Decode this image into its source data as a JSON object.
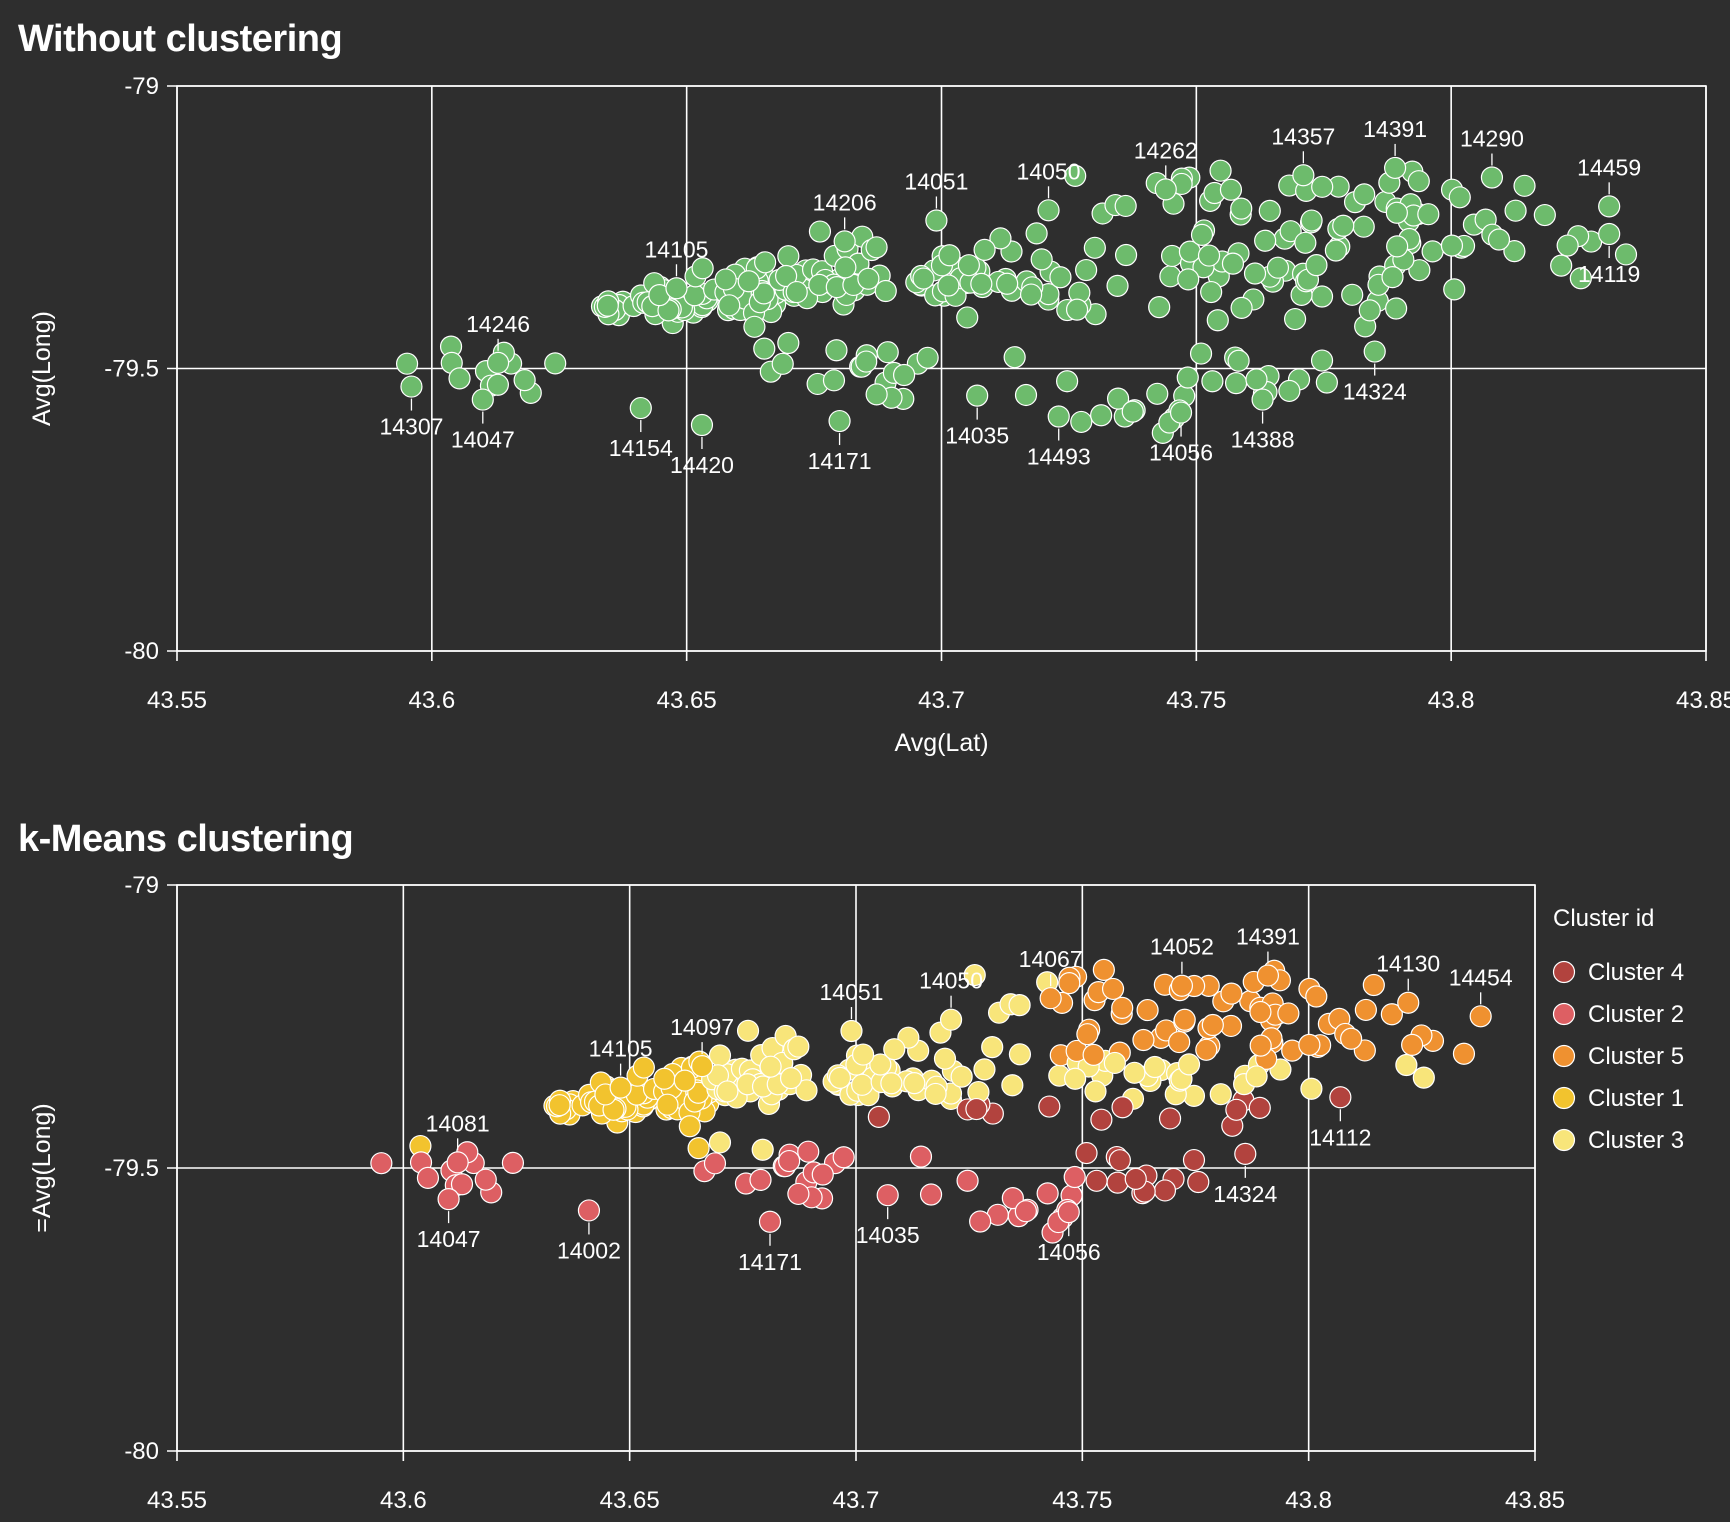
{
  "chart_data": [
    {
      "type": "scatter",
      "title": "Without clustering",
      "xlabel": "Avg(Lat)",
      "ylabel": "Avg(Long)",
      "xlim": [
        43.55,
        43.85
      ],
      "ylim": [
        -80,
        -79
      ],
      "xticks": [
        "43.55",
        "43.6",
        "43.65",
        "43.7",
        "43.75",
        "43.8",
        "43.85"
      ],
      "yticks": [
        "-79",
        "-79.5",
        "-80"
      ],
      "grid": true,
      "point_color": "#6dbb6c",
      "labeled_points": [
        {
          "label": "14307",
          "x": 43.596,
          "y": -79.532,
          "pos": "below"
        },
        {
          "label": "14047",
          "x": 43.61,
          "y": -79.555,
          "pos": "below"
        },
        {
          "label": "14246",
          "x": 43.613,
          "y": -79.49,
          "pos": "above"
        },
        {
          "label": "14154",
          "x": 43.641,
          "y": -79.57,
          "pos": "below"
        },
        {
          "label": "14420",
          "x": 43.653,
          "y": -79.6,
          "pos": "below"
        },
        {
          "label": "14105",
          "x": 43.648,
          "y": -79.358,
          "pos": "above"
        },
        {
          "label": "14206",
          "x": 43.681,
          "y": -79.275,
          "pos": "above"
        },
        {
          "label": "14171",
          "x": 43.68,
          "y": -79.593,
          "pos": "below"
        },
        {
          "label": "14051",
          "x": 43.699,
          "y": -79.238,
          "pos": "above"
        },
        {
          "label": "14035",
          "x": 43.707,
          "y": -79.548,
          "pos": "below"
        },
        {
          "label": "14050",
          "x": 43.721,
          "y": -79.22,
          "pos": "above"
        },
        {
          "label": "14493",
          "x": 43.723,
          "y": -79.585,
          "pos": "below"
        },
        {
          "label": "14262",
          "x": 43.744,
          "y": -79.183,
          "pos": "above"
        },
        {
          "label": "14056",
          "x": 43.747,
          "y": -79.578,
          "pos": "below"
        },
        {
          "label": "14388",
          "x": 43.763,
          "y": -79.555,
          "pos": "below"
        },
        {
          "label": "14357",
          "x": 43.771,
          "y": -79.158,
          "pos": "above"
        },
        {
          "label": "14391",
          "x": 43.789,
          "y": -79.145,
          "pos": "above"
        },
        {
          "label": "14324",
          "x": 43.785,
          "y": -79.47,
          "pos": "below"
        },
        {
          "label": "14290",
          "x": 43.808,
          "y": -79.162,
          "pos": "above"
        },
        {
          "label": "14459",
          "x": 43.831,
          "y": -79.213,
          "pos": "above"
        },
        {
          "label": "14119",
          "x": 43.831,
          "y": -79.262,
          "pos": "below"
        }
      ]
    },
    {
      "type": "scatter",
      "title": "k-Means clustering",
      "xlabel": "",
      "ylabel": "=Avg(Long)",
      "xlim": [
        43.55,
        43.85
      ],
      "ylim": [
        -80,
        -79
      ],
      "xticks": [
        "43.55",
        "43.6",
        "43.65",
        "43.7",
        "43.75",
        "43.8",
        "43.85"
      ],
      "yticks": [
        "-79",
        "-79.5",
        "-80"
      ],
      "grid": true,
      "legend": {
        "title": "Cluster id",
        "position": "right",
        "entries": [
          {
            "name": "Cluster 4",
            "color": "#b2433e"
          },
          {
            "name": "Cluster 2",
            "color": "#dd5f63"
          },
          {
            "name": "Cluster 5",
            "color": "#ef9130"
          },
          {
            "name": "Cluster 1",
            "color": "#f2c32e"
          },
          {
            "name": "Cluster 3",
            "color": "#f8e57a"
          }
        ]
      },
      "series": [
        {
          "name": "Cluster 4",
          "color": "#b2433e",
          "region": {
            "x": [
              43.685,
              43.812
            ],
            "y": [
              -79.52,
              -79.38
            ]
          },
          "labeled_points": [
            {
              "label": "14324",
              "x": 43.786,
              "y": -79.475,
              "pos": "below"
            },
            {
              "label": "14112",
              "x": 43.807,
              "y": -79.375,
              "pos": "below"
            }
          ]
        },
        {
          "name": "Cluster 2",
          "color": "#dd5f63",
          "region": {
            "x": [
              43.596,
              43.75
            ],
            "y": [
              -79.61,
              -79.47
            ]
          },
          "labeled_points": [
            {
              "label": "14047",
              "x": 43.61,
              "y": -79.555,
              "pos": "below"
            },
            {
              "label": "14081",
              "x": 43.612,
              "y": -79.49,
              "pos": "above"
            },
            {
              "label": "14002",
              "x": 43.641,
              "y": -79.575,
              "pos": "below"
            },
            {
              "label": "14171",
              "x": 43.681,
              "y": -79.595,
              "pos": "below"
            },
            {
              "label": "14035",
              "x": 43.707,
              "y": -79.548,
              "pos": "below"
            },
            {
              "label": "14056",
              "x": 43.747,
              "y": -79.578,
              "pos": "below"
            }
          ]
        },
        {
          "name": "Cluster 5",
          "color": "#ef9130",
          "region": {
            "x": [
              43.74,
              43.84
            ],
            "y": [
              -79.31,
              -79.14
            ]
          },
          "labeled_points": [
            {
              "label": "14067",
              "x": 43.743,
              "y": -79.2,
              "pos": "above"
            },
            {
              "label": "14052",
              "x": 43.772,
              "y": -79.178,
              "pos": "above"
            },
            {
              "label": "14391",
              "x": 43.791,
              "y": -79.16,
              "pos": "above"
            },
            {
              "label": "14130",
              "x": 43.822,
              "y": -79.208,
              "pos": "above"
            },
            {
              "label": "14454",
              "x": 43.838,
              "y": -79.232,
              "pos": "above"
            }
          ]
        },
        {
          "name": "Cluster 1",
          "color": "#f2c32e",
          "region": {
            "x": [
              43.63,
              43.69
            ],
            "y": [
              -79.48,
              -79.34
            ]
          },
          "labeled_points": [
            {
              "label": "14105",
              "x": 43.648,
              "y": -79.358,
              "pos": "above"
            },
            {
              "label": "14097",
              "x": 43.666,
              "y": -79.32,
              "pos": "above"
            }
          ]
        },
        {
          "name": "Cluster 3",
          "color": "#f8e57a",
          "region": {
            "x": [
              43.665,
              43.792
            ],
            "y": [
              -79.38,
              -79.24
            ]
          },
          "labeled_points": [
            {
              "label": "14051",
              "x": 43.699,
              "y": -79.258,
              "pos": "above"
            },
            {
              "label": "14050",
              "x": 43.721,
              "y": -79.238,
              "pos": "above"
            }
          ]
        }
      ]
    }
  ]
}
